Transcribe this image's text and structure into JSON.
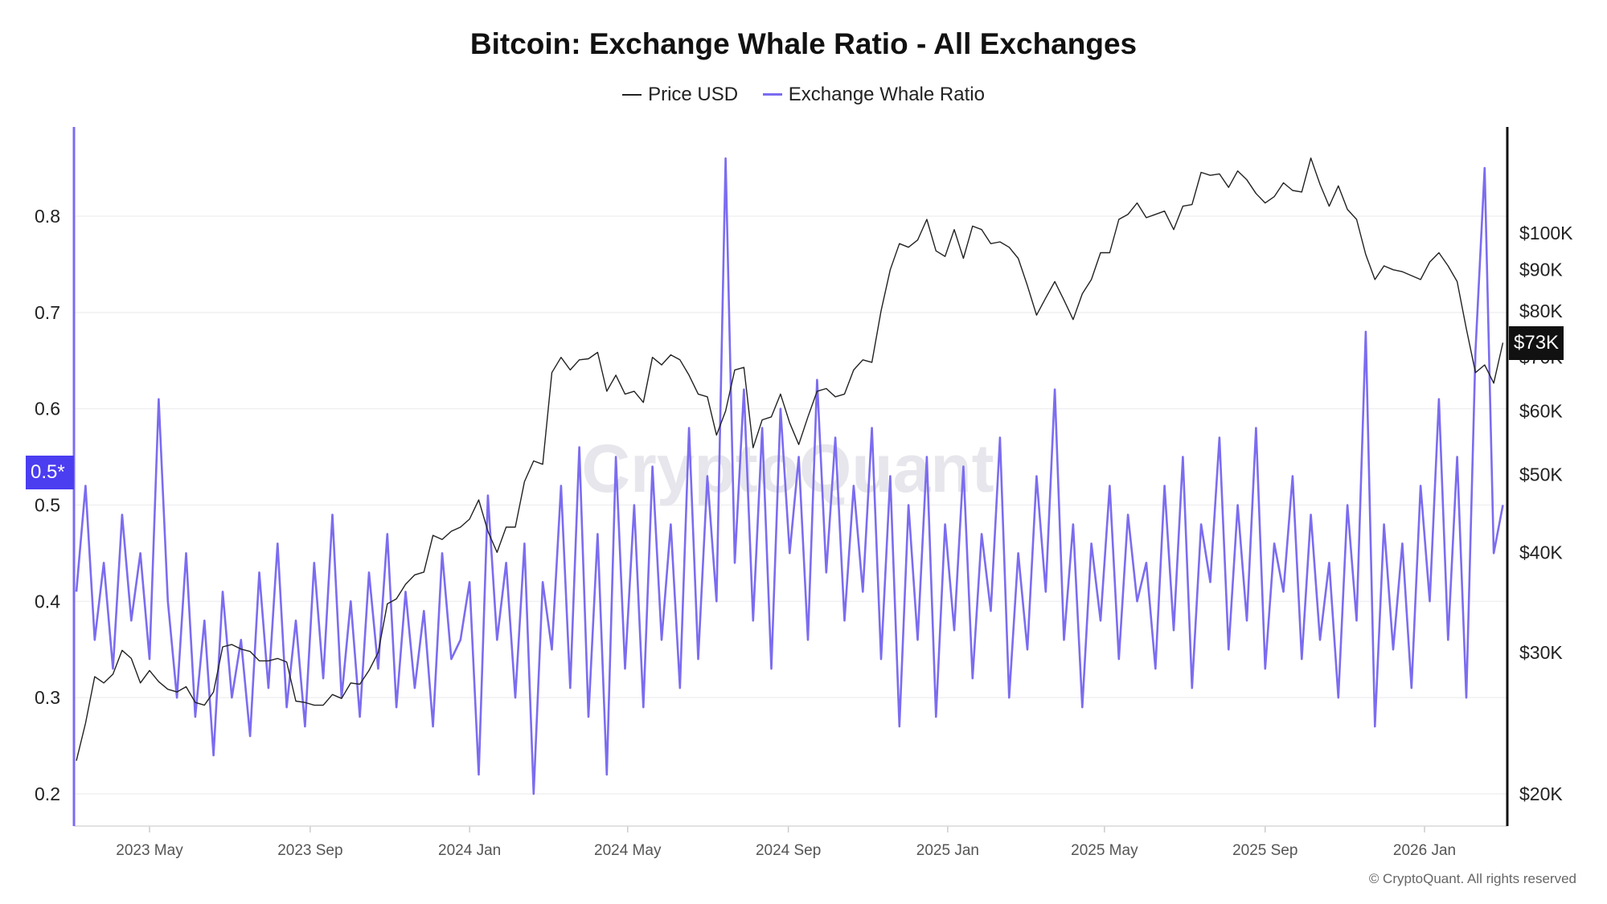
{
  "title": "Bitcoin: Exchange Whale Ratio - All Exchanges",
  "legend": [
    {
      "label": "Price USD",
      "color": "#222222"
    },
    {
      "label": "Exchange Whale Ratio",
      "color": "#7b6cf0"
    }
  ],
  "watermark": "CryptoQuant",
  "copyright": "© CryptoQuant. All rights reserved",
  "current_ratio_tag": "0.5*",
  "current_price_tag": "$73K",
  "chart_data": {
    "type": "line",
    "title": "Bitcoin: Exchange Whale Ratio - All Exchanges",
    "x_ticks": [
      "2023 May",
      "2023 Sep",
      "2024 Jan",
      "2024 May",
      "2024 Sep",
      "2025 Jan",
      "2025 May",
      "2025 Sep",
      "2026 Jan"
    ],
    "x_tick_dates": [
      "2023-05-01",
      "2023-09-01",
      "2024-01-01",
      "2024-05-01",
      "2024-09-01",
      "2025-01-01",
      "2025-05-01",
      "2025-09-01",
      "2026-01-01"
    ],
    "xlim": [
      "2023-03-04",
      "2026-03-05"
    ],
    "y_left": {
      "ticks": [
        "0.2",
        "0.3",
        "0.4",
        "0.5",
        "0.6",
        "0.7",
        "0.8"
      ],
      "ylim": [
        0.167,
        0.893
      ],
      "scale": "linear"
    },
    "y_right": {
      "ticks": [
        {
          "label": "$20K",
          "value": 20000
        },
        {
          "label": "$30K",
          "value": 30000
        },
        {
          "label": "$40K",
          "value": 40000
        },
        {
          "label": "$50K",
          "value": 50000
        },
        {
          "label": "$60K",
          "value": 60000
        },
        {
          "label": "$70K",
          "value": 70000
        },
        {
          "label": "$80K",
          "value": 80000
        },
        {
          "label": "$90K",
          "value": 90000
        },
        {
          "label": "$100K",
          "value": 100000
        }
      ],
      "scale": "log"
    },
    "grid": true,
    "legend_position": "top",
    "x": [
      "2023-03-06",
      "2023-03-13",
      "2023-03-20",
      "2023-03-27",
      "2023-04-03",
      "2023-04-10",
      "2023-04-17",
      "2023-04-24",
      "2023-05-01",
      "2023-05-08",
      "2023-05-15",
      "2023-05-22",
      "2023-05-29",
      "2023-06-05",
      "2023-06-12",
      "2023-06-19",
      "2023-06-26",
      "2023-07-03",
      "2023-07-10",
      "2023-07-17",
      "2023-07-24",
      "2023-07-31",
      "2023-08-07",
      "2023-08-14",
      "2023-08-21",
      "2023-08-28",
      "2023-09-04",
      "2023-09-11",
      "2023-09-18",
      "2023-09-25",
      "2023-10-02",
      "2023-10-09",
      "2023-10-16",
      "2023-10-23",
      "2023-10-30",
      "2023-11-06",
      "2023-11-13",
      "2023-11-20",
      "2023-11-27",
      "2023-12-04",
      "2023-12-11",
      "2023-12-18",
      "2023-12-25",
      "2024-01-01",
      "2024-01-08",
      "2024-01-15",
      "2024-01-22",
      "2024-01-29",
      "2024-02-05",
      "2024-02-12",
      "2024-02-19",
      "2024-02-26",
      "2024-03-04",
      "2024-03-11",
      "2024-03-18",
      "2024-03-25",
      "2024-04-01",
      "2024-04-08",
      "2024-04-15",
      "2024-04-22",
      "2024-04-29",
      "2024-05-06",
      "2024-05-13",
      "2024-05-20",
      "2024-05-27",
      "2024-06-03",
      "2024-06-10",
      "2024-06-17",
      "2024-06-24",
      "2024-07-01",
      "2024-07-08",
      "2024-07-15",
      "2024-07-22",
      "2024-07-29",
      "2024-08-05",
      "2024-08-12",
      "2024-08-19",
      "2024-08-26",
      "2024-09-02",
      "2024-09-09",
      "2024-09-16",
      "2024-09-23",
      "2024-09-30",
      "2024-10-07",
      "2024-10-14",
      "2024-10-21",
      "2024-10-28",
      "2024-11-04",
      "2024-11-11",
      "2024-11-18",
      "2024-11-25",
      "2024-12-02",
      "2024-12-09",
      "2024-12-16",
      "2024-12-23",
      "2024-12-30",
      "2025-01-06",
      "2025-01-13",
      "2025-01-20",
      "2025-01-27",
      "2025-02-03",
      "2025-02-10",
      "2025-02-17",
      "2025-02-24",
      "2025-03-03",
      "2025-03-10",
      "2025-03-17",
      "2025-03-24",
      "2025-03-31",
      "2025-04-07",
      "2025-04-14",
      "2025-04-21",
      "2025-04-28",
      "2025-05-05",
      "2025-05-12",
      "2025-05-19",
      "2025-05-26",
      "2025-06-02",
      "2025-06-09",
      "2025-06-16",
      "2025-06-23",
      "2025-06-30",
      "2025-07-07",
      "2025-07-14",
      "2025-07-21",
      "2025-07-28",
      "2025-08-04",
      "2025-08-11",
      "2025-08-18",
      "2025-08-25",
      "2025-09-01",
      "2025-09-08",
      "2025-09-15",
      "2025-09-22",
      "2025-09-29",
      "2025-10-06",
      "2025-10-13",
      "2025-10-20",
      "2025-10-27",
      "2025-11-03",
      "2025-11-10",
      "2025-11-17",
      "2025-11-24",
      "2025-12-01",
      "2025-12-08",
      "2025-12-15",
      "2025-12-22",
      "2025-12-29",
      "2026-01-05",
      "2026-01-12",
      "2026-01-19",
      "2026-01-26",
      "2026-02-02",
      "2026-02-09",
      "2026-02-16",
      "2026-02-23",
      "2026-03-02"
    ],
    "series": [
      {
        "name": "Price USD",
        "axis": "right",
        "color": "#222222",
        "values": [
          22000,
          24500,
          28000,
          27500,
          28200,
          30200,
          29500,
          27500,
          28500,
          27600,
          27000,
          26800,
          27200,
          26000,
          25800,
          26800,
          30500,
          30700,
          30300,
          30100,
          29300,
          29300,
          29500,
          29200,
          26100,
          26000,
          25800,
          25800,
          26600,
          26300,
          27500,
          27400,
          28500,
          30000,
          34500,
          35000,
          36500,
          37500,
          37800,
          42000,
          41500,
          42500,
          43000,
          44000,
          46500,
          42500,
          40000,
          43000,
          43000,
          49000,
          52000,
          51500,
          67000,
          70000,
          67500,
          69500,
          69700,
          71000,
          63500,
          66500,
          63000,
          63500,
          61500,
          70000,
          68500,
          70500,
          69500,
          66500,
          63000,
          62500,
          56000,
          60000,
          67500,
          68000,
          54000,
          58500,
          59000,
          63000,
          58000,
          54500,
          59000,
          63500,
          64000,
          62500,
          63000,
          67500,
          69500,
          69000,
          80000,
          90000,
          97000,
          96000,
          98000,
          104000,
          95000,
          93500,
          101000,
          93000,
          102000,
          101000,
          97000,
          97500,
          96000,
          93000,
          86000,
          79000,
          83000,
          87000,
          82500,
          78000,
          84000,
          87500,
          94500,
          94500,
          104000,
          105500,
          109000,
          104500,
          105500,
          106500,
          101000,
          108000,
          108500,
          119000,
          118000,
          118500,
          114000,
          119500,
          116500,
          112000,
          109000,
          111000,
          115500,
          113000,
          112500,
          124000,
          115000,
          108000,
          114500,
          107000,
          104000,
          94000,
          87500,
          91000,
          90000,
          89500,
          88500,
          87500,
          92000,
          94500,
          91000,
          87000,
          76000,
          67000,
          68500,
          65000,
          73000
        ]
      },
      {
        "name": "Exchange Whale Ratio",
        "axis": "left",
        "color": "#7b6cf0",
        "values": [
          0.41,
          0.52,
          0.36,
          0.44,
          0.33,
          0.49,
          0.38,
          0.45,
          0.34,
          0.61,
          0.4,
          0.3,
          0.45,
          0.28,
          0.38,
          0.24,
          0.41,
          0.3,
          0.36,
          0.26,
          0.43,
          0.31,
          0.46,
          0.29,
          0.38,
          0.27,
          0.44,
          0.32,
          0.49,
          0.3,
          0.4,
          0.28,
          0.43,
          0.33,
          0.47,
          0.29,
          0.41,
          0.31,
          0.39,
          0.27,
          0.45,
          0.34,
          0.36,
          0.42,
          0.22,
          0.51,
          0.36,
          0.44,
          0.3,
          0.46,
          0.2,
          0.42,
          0.35,
          0.52,
          0.31,
          0.56,
          0.28,
          0.47,
          0.22,
          0.55,
          0.33,
          0.5,
          0.29,
          0.54,
          0.36,
          0.48,
          0.31,
          0.58,
          0.34,
          0.53,
          0.4,
          0.86,
          0.44,
          0.62,
          0.38,
          0.58,
          0.33,
          0.6,
          0.45,
          0.55,
          0.36,
          0.63,
          0.43,
          0.57,
          0.38,
          0.52,
          0.41,
          0.58,
          0.34,
          0.53,
          0.27,
          0.5,
          0.36,
          0.55,
          0.28,
          0.48,
          0.37,
          0.54,
          0.32,
          0.47,
          0.39,
          0.57,
          0.3,
          0.45,
          0.35,
          0.53,
          0.41,
          0.62,
          0.36,
          0.48,
          0.29,
          0.46,
          0.38,
          0.52,
          0.34,
          0.49,
          0.4,
          0.44,
          0.33,
          0.52,
          0.37,
          0.55,
          0.31,
          0.48,
          0.42,
          0.57,
          0.35,
          0.5,
          0.38,
          0.58,
          0.33,
          0.46,
          0.41,
          0.53,
          0.34,
          0.49,
          0.36,
          0.44,
          0.3,
          0.5,
          0.38,
          0.68,
          0.27,
          0.48,
          0.35,
          0.46,
          0.31,
          0.52,
          0.4,
          0.61,
          0.36,
          0.55,
          0.3,
          0.66,
          0.85,
          0.45,
          0.5
        ]
      }
    ]
  }
}
